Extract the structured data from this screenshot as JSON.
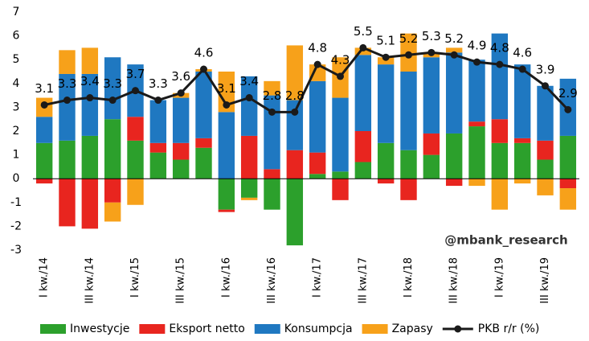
{
  "chart_data": {
    "type": "stacked_bar_line",
    "annotation": "@mbank_research",
    "categories": [
      "I kw./14",
      null,
      "III kw./14",
      null,
      "I kw./15",
      null,
      "III kw./15",
      null,
      "I kw./16",
      null,
      "III kw./16",
      null,
      "I kw./17",
      null,
      "III kw./17",
      null,
      "I kw./18",
      null,
      "III kw./18",
      null,
      "I kw./19",
      null,
      "III kw./19",
      null
    ],
    "series": [
      {
        "name": "Inwestycje",
        "color": "#2ca02c",
        "values": [
          1.5,
          1.6,
          1.8,
          2.5,
          1.6,
          1.1,
          0.8,
          1.3,
          -1.3,
          -0.8,
          -1.3,
          -2.8,
          0.2,
          0.3,
          0.7,
          1.5,
          1.2,
          1.0,
          1.9,
          2.2,
          1.5,
          1.5,
          0.8,
          1.8
        ]
      },
      {
        "name": "Eksport netto",
        "color": "#e8251f",
        "values": [
          -0.2,
          -2.0,
          -2.1,
          -1.0,
          1.0,
          0.4,
          0.7,
          0.4,
          -0.1,
          1.8,
          0.4,
          1.2,
          0.9,
          -0.9,
          1.3,
          -0.2,
          -0.9,
          0.9,
          -0.3,
          0.2,
          1.0,
          0.2,
          0.8,
          -0.4
        ]
      },
      {
        "name": "Konsumpcja",
        "color": "#1f78c1",
        "values": [
          1.1,
          2.8,
          2.6,
          2.6,
          2.2,
          1.8,
          1.9,
          2.8,
          2.8,
          2.5,
          3.1,
          2.1,
          3.0,
          3.1,
          3.2,
          3.3,
          3.3,
          3.2,
          3.4,
          2.6,
          3.6,
          3.1,
          2.3,
          2.4
        ]
      },
      {
        "name": "Zapasy",
        "color": "#f7a11a",
        "values": [
          0.8,
          1.0,
          1.1,
          -0.8,
          -1.1,
          0,
          0.2,
          0.1,
          1.7,
          -0.1,
          0.6,
          2.3,
          0.7,
          1.7,
          0.3,
          0.3,
          1.6,
          0.2,
          0.2,
          -0.3,
          -1.3,
          -0.2,
          -0.7,
          -0.9
        ]
      },
      {
        "name": "PKB r/r (%)",
        "color": "#1a1a1a",
        "kind": "line",
        "values": [
          3.1,
          3.3,
          3.4,
          3.3,
          3.7,
          3.3,
          3.6,
          4.6,
          3.1,
          3.4,
          2.8,
          2.8,
          4.8,
          4.3,
          5.5,
          5.1,
          5.2,
          5.3,
          5.2,
          4.9,
          4.8,
          4.6,
          3.9,
          2.9
        ]
      }
    ],
    "ylim": [
      -3,
      7
    ],
    "yticks": [
      -3,
      -2,
      -1,
      0,
      1,
      2,
      3,
      4,
      5,
      6,
      7
    ],
    "grid": false,
    "legend": "bottom"
  }
}
